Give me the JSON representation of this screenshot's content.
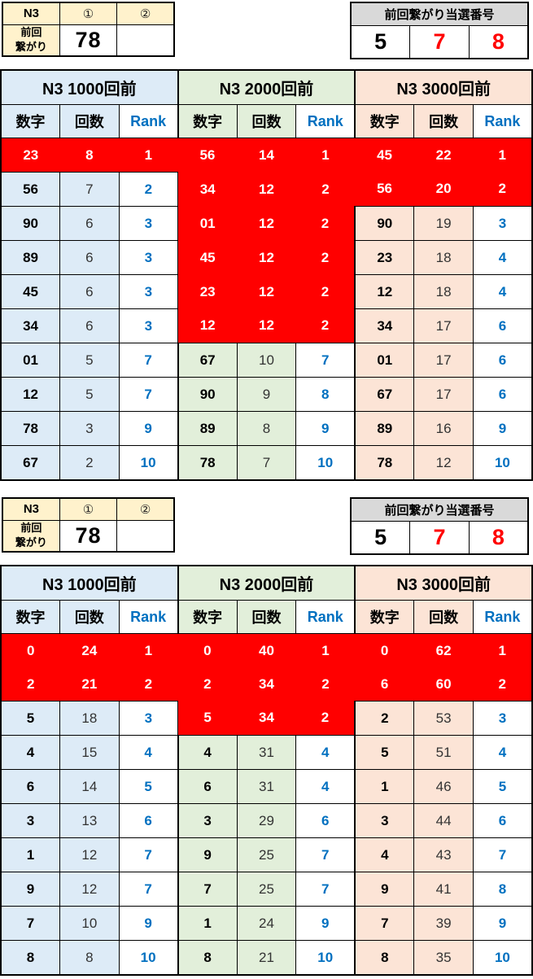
{
  "colors": {
    "hot_red": "#FF0000",
    "theme_blue": "#DDEBF7",
    "theme_green": "#E2EFDA",
    "theme_peach": "#FCE4D6",
    "header_yellow": "#FFF2CC",
    "header_gray": "#D9D9D9",
    "rank_blue": "#0070C0"
  },
  "sections": [
    {
      "info": {
        "corner": "N3",
        "col1": "①",
        "col2": "②",
        "label_lines": [
          "前回",
          "繋がり"
        ],
        "value1": "78",
        "value2": ""
      },
      "winning": {
        "title": "前回繋がり当選番号",
        "numbers": [
          {
            "value": "5",
            "hot": false
          },
          {
            "value": "7",
            "hot": true
          },
          {
            "value": "8",
            "hot": true
          }
        ]
      },
      "stats": {
        "col_headers": [
          "数字",
          "回数",
          "Rank"
        ],
        "groups": [
          {
            "title": "N3 1000回前",
            "theme": "blue",
            "rows": [
              {
                "digit": "23",
                "count": "8",
                "rank": "1",
                "hot": true
              },
              {
                "digit": "56",
                "count": "7",
                "rank": "2",
                "hot": false
              },
              {
                "digit": "90",
                "count": "6",
                "rank": "3",
                "hot": false
              },
              {
                "digit": "89",
                "count": "6",
                "rank": "3",
                "hot": false
              },
              {
                "digit": "45",
                "count": "6",
                "rank": "3",
                "hot": false
              },
              {
                "digit": "34",
                "count": "6",
                "rank": "3",
                "hot": false
              },
              {
                "digit": "01",
                "count": "5",
                "rank": "7",
                "hot": false
              },
              {
                "digit": "12",
                "count": "5",
                "rank": "7",
                "hot": false
              },
              {
                "digit": "78",
                "count": "3",
                "rank": "9",
                "hot": false
              },
              {
                "digit": "67",
                "count": "2",
                "rank": "10",
                "hot": false
              }
            ]
          },
          {
            "title": "N3 2000回前",
            "theme": "green",
            "rows": [
              {
                "digit": "56",
                "count": "14",
                "rank": "1",
                "hot": true
              },
              {
                "digit": "34",
                "count": "12",
                "rank": "2",
                "hot": true
              },
              {
                "digit": "01",
                "count": "12",
                "rank": "2",
                "hot": true
              },
              {
                "digit": "45",
                "count": "12",
                "rank": "2",
                "hot": true
              },
              {
                "digit": "23",
                "count": "12",
                "rank": "2",
                "hot": true
              },
              {
                "digit": "12",
                "count": "12",
                "rank": "2",
                "hot": true
              },
              {
                "digit": "67",
                "count": "10",
                "rank": "7",
                "hot": false
              },
              {
                "digit": "90",
                "count": "9",
                "rank": "8",
                "hot": false
              },
              {
                "digit": "89",
                "count": "8",
                "rank": "9",
                "hot": false
              },
              {
                "digit": "78",
                "count": "7",
                "rank": "10",
                "hot": false
              }
            ]
          },
          {
            "title": "N3 3000回前",
            "theme": "peach",
            "rows": [
              {
                "digit": "45",
                "count": "22",
                "rank": "1",
                "hot": true
              },
              {
                "digit": "56",
                "count": "20",
                "rank": "2",
                "hot": true
              },
              {
                "digit": "90",
                "count": "19",
                "rank": "3",
                "hot": false
              },
              {
                "digit": "23",
                "count": "18",
                "rank": "4",
                "hot": false
              },
              {
                "digit": "12",
                "count": "18",
                "rank": "4",
                "hot": false
              },
              {
                "digit": "34",
                "count": "17",
                "rank": "6",
                "hot": false
              },
              {
                "digit": "01",
                "count": "17",
                "rank": "6",
                "hot": false
              },
              {
                "digit": "67",
                "count": "17",
                "rank": "6",
                "hot": false
              },
              {
                "digit": "89",
                "count": "16",
                "rank": "9",
                "hot": false
              },
              {
                "digit": "78",
                "count": "12",
                "rank": "10",
                "hot": false
              }
            ]
          }
        ]
      }
    },
    {
      "info": {
        "corner": "N3",
        "col1": "①",
        "col2": "②",
        "label_lines": [
          "前回",
          "繋がり"
        ],
        "value1": "78",
        "value2": ""
      },
      "winning": {
        "title": "前回繋がり当選番号",
        "numbers": [
          {
            "value": "5",
            "hot": false
          },
          {
            "value": "7",
            "hot": true
          },
          {
            "value": "8",
            "hot": true
          }
        ]
      },
      "stats": {
        "col_headers": [
          "数字",
          "回数",
          "Rank"
        ],
        "groups": [
          {
            "title": "N3 1000回前",
            "theme": "blue",
            "rows": [
              {
                "digit": "0",
                "count": "24",
                "rank": "1",
                "hot": true
              },
              {
                "digit": "2",
                "count": "21",
                "rank": "2",
                "hot": true
              },
              {
                "digit": "5",
                "count": "18",
                "rank": "3",
                "hot": false
              },
              {
                "digit": "4",
                "count": "15",
                "rank": "4",
                "hot": false
              },
              {
                "digit": "6",
                "count": "14",
                "rank": "5",
                "hot": false
              },
              {
                "digit": "3",
                "count": "13",
                "rank": "6",
                "hot": false
              },
              {
                "digit": "1",
                "count": "12",
                "rank": "7",
                "hot": false
              },
              {
                "digit": "9",
                "count": "12",
                "rank": "7",
                "hot": false
              },
              {
                "digit": "7",
                "count": "10",
                "rank": "9",
                "hot": false
              },
              {
                "digit": "8",
                "count": "8",
                "rank": "10",
                "hot": false
              }
            ]
          },
          {
            "title": "N3 2000回前",
            "theme": "green",
            "rows": [
              {
                "digit": "0",
                "count": "40",
                "rank": "1",
                "hot": true
              },
              {
                "digit": "2",
                "count": "34",
                "rank": "2",
                "hot": true
              },
              {
                "digit": "5",
                "count": "34",
                "rank": "2",
                "hot": true
              },
              {
                "digit": "4",
                "count": "31",
                "rank": "4",
                "hot": false
              },
              {
                "digit": "6",
                "count": "31",
                "rank": "4",
                "hot": false
              },
              {
                "digit": "3",
                "count": "29",
                "rank": "6",
                "hot": false
              },
              {
                "digit": "9",
                "count": "25",
                "rank": "7",
                "hot": false
              },
              {
                "digit": "7",
                "count": "25",
                "rank": "7",
                "hot": false
              },
              {
                "digit": "1",
                "count": "24",
                "rank": "9",
                "hot": false
              },
              {
                "digit": "8",
                "count": "21",
                "rank": "10",
                "hot": false
              }
            ]
          },
          {
            "title": "N3 3000回前",
            "theme": "peach",
            "rows": [
              {
                "digit": "0",
                "count": "62",
                "rank": "1",
                "hot": true
              },
              {
                "digit": "6",
                "count": "60",
                "rank": "2",
                "hot": true
              },
              {
                "digit": "2",
                "count": "53",
                "rank": "3",
                "hot": false
              },
              {
                "digit": "5",
                "count": "51",
                "rank": "4",
                "hot": false
              },
              {
                "digit": "1",
                "count": "46",
                "rank": "5",
                "hot": false
              },
              {
                "digit": "3",
                "count": "44",
                "rank": "6",
                "hot": false
              },
              {
                "digit": "4",
                "count": "43",
                "rank": "7",
                "hot": false
              },
              {
                "digit": "9",
                "count": "41",
                "rank": "8",
                "hot": false
              },
              {
                "digit": "7",
                "count": "39",
                "rank": "9",
                "hot": false
              },
              {
                "digit": "8",
                "count": "35",
                "rank": "10",
                "hot": false
              }
            ]
          }
        ]
      }
    }
  ]
}
